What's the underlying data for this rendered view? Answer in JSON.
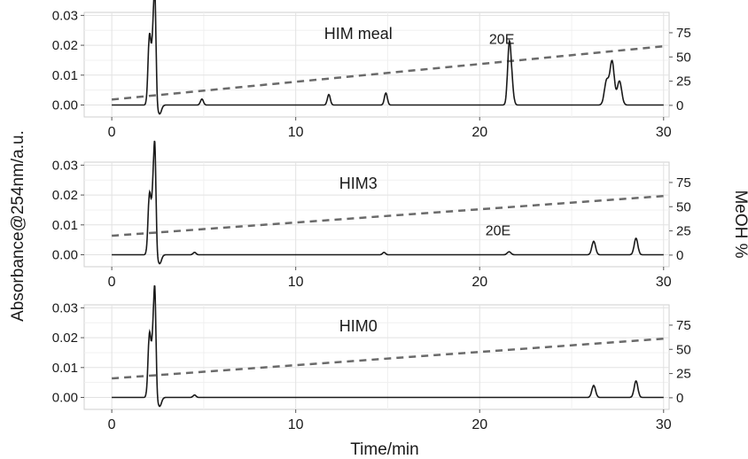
{
  "figure": {
    "ylabel_left": "Absorbance@254nm/a.u.",
    "ylabel_right": "MeOH %",
    "xlabel": "Time/min"
  },
  "chart_data": [
    {
      "type": "line",
      "title": "HIM meal",
      "xlim": [
        -1.5,
        30.3
      ],
      "ylim": [
        -0.004,
        0.031
      ],
      "y2lim": [
        -12,
        96
      ],
      "xticks": [
        0,
        10,
        20,
        30
      ],
      "yticks": [
        0.0,
        0.01,
        0.02,
        0.03
      ],
      "y2ticks": [
        0,
        25,
        50,
        75
      ],
      "grid": true,
      "gradient": {
        "axis": "right",
        "style": "dashed",
        "x": [
          0,
          30
        ],
        "y": [
          6,
          61
        ]
      },
      "series": [
        {
          "axis": "left",
          "baseline": 0.0,
          "peaks": [
            {
              "x": 2.05,
              "height": 0.023,
              "width": 0.08
            },
            {
              "x": 2.25,
              "height": 0.022,
              "width": 0.08
            },
            {
              "x": 2.35,
              "height": 0.028,
              "width": 0.06
            },
            {
              "x": 2.6,
              "height": -0.003,
              "width": 0.1
            },
            {
              "x": 4.9,
              "height": 0.002,
              "width": 0.08
            },
            {
              "x": 11.8,
              "height": 0.0035,
              "width": 0.08
            },
            {
              "x": 14.9,
              "height": 0.004,
              "width": 0.08
            },
            {
              "x": 21.6,
              "height": 0.017,
              "width": 0.09
            },
            {
              "x": 21.72,
              "height": 0.008,
              "width": 0.1
            },
            {
              "x": 26.9,
              "height": 0.008,
              "width": 0.12
            },
            {
              "x": 27.2,
              "height": 0.0145,
              "width": 0.12
            },
            {
              "x": 27.6,
              "height": 0.008,
              "width": 0.12
            }
          ]
        }
      ],
      "annotations": [
        {
          "text": "20E",
          "x": 21.2,
          "y": 0.0205
        }
      ]
    },
    {
      "type": "line",
      "title": "HIM3",
      "xlim": [
        -1.5,
        30.3
      ],
      "ylim": [
        -0.004,
        0.031
      ],
      "y2lim": [
        -12,
        96
      ],
      "xticks": [
        0,
        10,
        20,
        30
      ],
      "yticks": [
        0.0,
        0.01,
        0.02,
        0.03
      ],
      "y2ticks": [
        0,
        25,
        50,
        75
      ],
      "grid": true,
      "gradient": {
        "axis": "right",
        "style": "dashed",
        "x": [
          0,
          30
        ],
        "y": [
          20,
          61
        ]
      },
      "series": [
        {
          "axis": "left",
          "baseline": 0.0,
          "peaks": [
            {
              "x": 2.05,
              "height": 0.02,
              "width": 0.08
            },
            {
              "x": 2.25,
              "height": 0.021,
              "width": 0.08
            },
            {
              "x": 2.35,
              "height": 0.027,
              "width": 0.06
            },
            {
              "x": 2.6,
              "height": -0.003,
              "width": 0.1
            },
            {
              "x": 4.5,
              "height": 0.0008,
              "width": 0.08
            },
            {
              "x": 14.8,
              "height": 0.0008,
              "width": 0.08
            },
            {
              "x": 21.6,
              "height": 0.001,
              "width": 0.1
            },
            {
              "x": 26.2,
              "height": 0.0045,
              "width": 0.1
            },
            {
              "x": 28.5,
              "height": 0.0055,
              "width": 0.1
            }
          ]
        }
      ],
      "annotations": [
        {
          "text": "20E",
          "x": 21.0,
          "y": 0.0065
        }
      ]
    },
    {
      "type": "line",
      "title": "HIM0",
      "xlim": [
        -1.5,
        30.3
      ],
      "ylim": [
        -0.004,
        0.031
      ],
      "y2lim": [
        -12,
        96
      ],
      "xticks": [
        0,
        10,
        20,
        30
      ],
      "yticks": [
        0.0,
        0.01,
        0.02,
        0.03
      ],
      "y2ticks": [
        0,
        25,
        50,
        75
      ],
      "grid": true,
      "gradient": {
        "axis": "right",
        "style": "dashed",
        "x": [
          0,
          30
        ],
        "y": [
          20,
          61
        ]
      },
      "series": [
        {
          "axis": "left",
          "baseline": 0.0,
          "peaks": [
            {
              "x": 2.05,
              "height": 0.021,
              "width": 0.08
            },
            {
              "x": 2.25,
              "height": 0.02,
              "width": 0.08
            },
            {
              "x": 2.35,
              "height": 0.027,
              "width": 0.06
            },
            {
              "x": 2.6,
              "height": -0.003,
              "width": 0.1
            },
            {
              "x": 4.5,
              "height": 0.0008,
              "width": 0.08
            },
            {
              "x": 26.2,
              "height": 0.004,
              "width": 0.1
            },
            {
              "x": 28.5,
              "height": 0.0055,
              "width": 0.1
            }
          ]
        }
      ],
      "annotations": []
    }
  ]
}
